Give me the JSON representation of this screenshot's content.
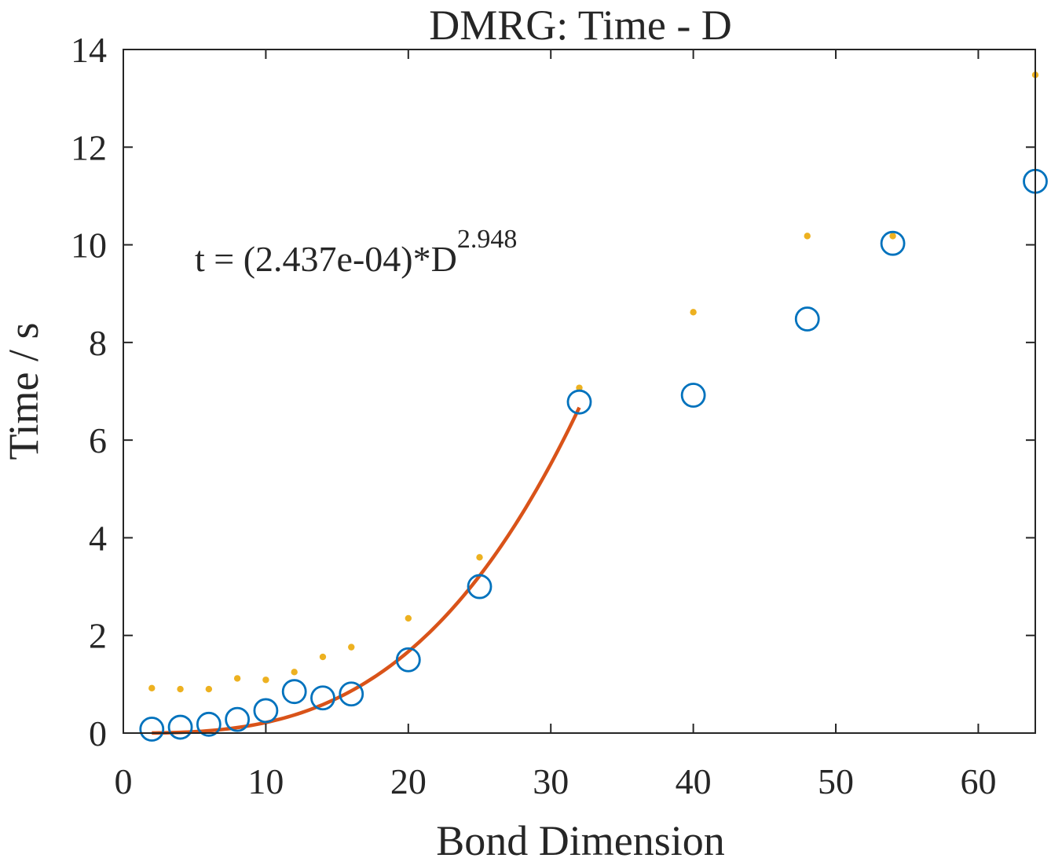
{
  "chart_data": {
    "type": "scatter",
    "title": "DMRG: Time - D",
    "xlabel": "Bond Dimension",
    "ylabel": "Time / s",
    "xlim": [
      0,
      64
    ],
    "ylim": [
      0,
      14
    ],
    "xticks": [
      0,
      10,
      20,
      30,
      40,
      50,
      60
    ],
    "yticks": [
      0,
      2,
      4,
      6,
      8,
      10,
      12,
      14
    ],
    "xtick_labels": [
      "0",
      "10",
      "20",
      "30",
      "40",
      "50",
      "60"
    ],
    "ytick_labels": [
      "0",
      "2",
      "4",
      "6",
      "8",
      "10",
      "12",
      "14"
    ],
    "grid": false,
    "box": true,
    "colors": {
      "circles": "#0072bd",
      "dots": "#edb120",
      "fit": "#d95319",
      "axis": "#262626"
    },
    "series": [
      {
        "marker": "circle-open",
        "x": [
          2,
          4,
          6,
          8,
          10,
          12,
          14,
          16,
          20,
          25,
          32,
          40,
          48,
          54,
          64
        ],
        "y": [
          0.08,
          0.12,
          0.18,
          0.28,
          0.46,
          0.85,
          0.72,
          0.8,
          1.5,
          3.0,
          6.78,
          6.92,
          8.48,
          10.03,
          11.3
        ]
      },
      {
        "marker": "dot",
        "x": [
          2,
          4,
          6,
          8,
          10,
          12,
          14,
          16,
          20,
          25,
          32,
          40,
          48,
          54,
          64
        ],
        "y": [
          0.92,
          0.9,
          0.9,
          1.12,
          1.09,
          1.25,
          1.56,
          1.76,
          2.35,
          3.6,
          7.07,
          8.62,
          10.18,
          10.18,
          13.48
        ]
      },
      {
        "marker": "line",
        "fit": {
          "coefficient": 0.0002437,
          "exponent": 2.948,
          "x_range": [
            2,
            32
          ]
        }
      }
    ],
    "annotation": {
      "text": "t = (2.437e-04)*D",
      "superscript": "2.948"
    }
  }
}
